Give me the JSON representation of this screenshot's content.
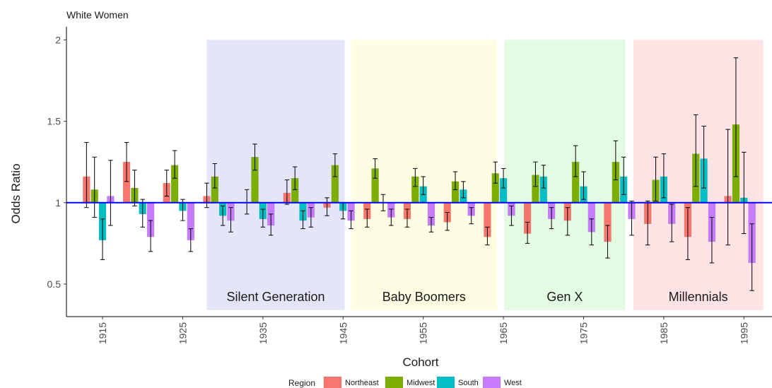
{
  "chart_data": {
    "type": "bar",
    "title": "White Women",
    "xlabel": "Cohort",
    "ylabel": "Odds Ratio",
    "ylim": [
      0.3,
      2.08
    ],
    "xlim": [
      1910.5,
      1998.5
    ],
    "reference_line": 1,
    "y_ticks": [
      {
        "value": 0.5,
        "label": "0.5"
      },
      {
        "value": 1,
        "label": "1"
      },
      {
        "value": 1.5,
        "label": "1.5"
      },
      {
        "value": 2,
        "label": "2"
      }
    ],
    "x_ticks": [
      {
        "value": 1915,
        "label": "1915"
      },
      {
        "value": 1925,
        "label": "1925"
      },
      {
        "value": 1935,
        "label": "1935"
      },
      {
        "value": 1945,
        "label": "1945"
      },
      {
        "value": 1955,
        "label": "1955"
      },
      {
        "value": 1965,
        "label": "1965"
      },
      {
        "value": 1975,
        "label": "1975"
      },
      {
        "value": 1985,
        "label": "1985"
      },
      {
        "value": 1995,
        "label": "1995"
      }
    ],
    "eras": [
      {
        "label": "Silent Generation",
        "start": 1928,
        "end": 1945.2,
        "color": "#e5e5fa"
      },
      {
        "label": "Baby Boomers",
        "start": 1946,
        "end": 1964.2,
        "color": "#fdfde3"
      },
      {
        "label": "Gen X",
        "start": 1965.1,
        "end": 1980.2,
        "color": "#e3fbe3"
      },
      {
        "label": "Millennials",
        "start": 1981.2,
        "end": 1997.4,
        "color": "#fde3e3"
      }
    ],
    "legend": {
      "title": "Region",
      "position": "bottom"
    },
    "series": [
      {
        "name": "Northeast",
        "color": "#F8766D",
        "points": [
          {
            "x": 1913,
            "y": 1.16,
            "lo": 0.97,
            "hi": 1.37
          },
          {
            "x": 1918,
            "y": 1.25,
            "lo": 1.13,
            "hi": 1.37
          },
          {
            "x": 1923,
            "y": 1.12,
            "lo": 1.04,
            "hi": 1.2
          },
          {
            "x": 1928,
            "y": 1.04,
            "lo": 0.97,
            "hi": 1.12
          },
          {
            "x": 1933,
            "y": 1.0,
            "lo": 0.93,
            "hi": 1.08
          },
          {
            "x": 1938,
            "y": 1.06,
            "lo": 0.99,
            "hi": 1.14
          },
          {
            "x": 1943,
            "y": 0.97,
            "lo": 0.92,
            "hi": 1.03
          },
          {
            "x": 1948,
            "y": 0.9,
            "lo": 0.85,
            "hi": 0.96
          },
          {
            "x": 1953,
            "y": 0.9,
            "lo": 0.85,
            "hi": 0.96
          },
          {
            "x": 1958,
            "y": 0.88,
            "lo": 0.83,
            "hi": 0.94
          },
          {
            "x": 1963,
            "y": 0.79,
            "lo": 0.74,
            "hi": 0.85
          },
          {
            "x": 1968,
            "y": 0.81,
            "lo": 0.75,
            "hi": 0.88
          },
          {
            "x": 1973,
            "y": 0.89,
            "lo": 0.8,
            "hi": 0.97
          },
          {
            "x": 1978,
            "y": 0.76,
            "lo": 0.66,
            "hi": 0.86
          },
          {
            "x": 1983,
            "y": 0.87,
            "lo": 0.74,
            "hi": 1.01
          },
          {
            "x": 1988,
            "y": 0.79,
            "lo": 0.65,
            "hi": 0.97
          },
          {
            "x": 1993,
            "y": 1.04,
            "lo": 0.74,
            "hi": 1.45
          }
        ]
      },
      {
        "name": "Midwest",
        "color": "#7CAE00",
        "points": [
          {
            "x": 1914,
            "y": 1.08,
            "lo": 0.91,
            "hi": 1.28
          },
          {
            "x": 1919,
            "y": 1.09,
            "lo": 0.98,
            "hi": 1.2
          },
          {
            "x": 1924,
            "y": 1.23,
            "lo": 1.15,
            "hi": 1.32
          },
          {
            "x": 1929,
            "y": 1.16,
            "lo": 1.09,
            "hi": 1.24
          },
          {
            "x": 1934,
            "y": 1.28,
            "lo": 1.2,
            "hi": 1.36
          },
          {
            "x": 1939,
            "y": 1.15,
            "lo": 1.08,
            "hi": 1.22
          },
          {
            "x": 1944,
            "y": 1.23,
            "lo": 1.16,
            "hi": 1.3
          },
          {
            "x": 1949,
            "y": 1.21,
            "lo": 1.15,
            "hi": 1.27
          },
          {
            "x": 1954,
            "y": 1.16,
            "lo": 1.1,
            "hi": 1.21
          },
          {
            "x": 1959,
            "y": 1.13,
            "lo": 1.08,
            "hi": 1.19
          },
          {
            "x": 1964,
            "y": 1.18,
            "lo": 1.12,
            "hi": 1.25
          },
          {
            "x": 1969,
            "y": 1.17,
            "lo": 1.1,
            "hi": 1.25
          },
          {
            "x": 1974,
            "y": 1.25,
            "lo": 1.16,
            "hi": 1.35
          },
          {
            "x": 1979,
            "y": 1.25,
            "lo": 1.14,
            "hi": 1.38
          },
          {
            "x": 1984,
            "y": 1.14,
            "lo": 1.01,
            "hi": 1.28
          },
          {
            "x": 1989,
            "y": 1.3,
            "lo": 1.1,
            "hi": 1.54
          },
          {
            "x": 1994,
            "y": 1.48,
            "lo": 1.16,
            "hi": 1.89
          }
        ]
      },
      {
        "name": "South",
        "color": "#00BFC4",
        "points": [
          {
            "x": 1915,
            "y": 0.77,
            "lo": 0.65,
            "hi": 0.9
          },
          {
            "x": 1920,
            "y": 0.93,
            "lo": 0.85,
            "hi": 1.02
          },
          {
            "x": 1925,
            "y": 0.95,
            "lo": 0.89,
            "hi": 1.02
          },
          {
            "x": 1930,
            "y": 0.92,
            "lo": 0.86,
            "hi": 0.98
          },
          {
            "x": 1935,
            "y": 0.9,
            "lo": 0.85,
            "hi": 0.96
          },
          {
            "x": 1940,
            "y": 0.89,
            "lo": 0.84,
            "hi": 0.95
          },
          {
            "x": 1945,
            "y": 0.95,
            "lo": 0.9,
            "hi": 1.0
          },
          {
            "x": 1950,
            "y": 1.0,
            "lo": 0.95,
            "hi": 1.05
          },
          {
            "x": 1955,
            "y": 1.1,
            "lo": 1.05,
            "hi": 1.16
          },
          {
            "x": 1960,
            "y": 1.08,
            "lo": 1.03,
            "hi": 1.13
          },
          {
            "x": 1965,
            "y": 1.15,
            "lo": 1.09,
            "hi": 1.21
          },
          {
            "x": 1970,
            "y": 1.16,
            "lo": 1.09,
            "hi": 1.23
          },
          {
            "x": 1975,
            "y": 1.1,
            "lo": 1.02,
            "hi": 1.19
          },
          {
            "x": 1980,
            "y": 1.16,
            "lo": 1.05,
            "hi": 1.28
          },
          {
            "x": 1985,
            "y": 1.16,
            "lo": 1.03,
            "hi": 1.3
          },
          {
            "x": 1990,
            "y": 1.27,
            "lo": 1.09,
            "hi": 1.47
          },
          {
            "x": 1995,
            "y": 1.03,
            "lo": 0.81,
            "hi": 1.31
          }
        ]
      },
      {
        "name": "West",
        "color": "#C77CFF",
        "points": [
          {
            "x": 1916,
            "y": 1.04,
            "lo": 0.86,
            "hi": 1.26
          },
          {
            "x": 1921,
            "y": 0.79,
            "lo": 0.7,
            "hi": 0.89
          },
          {
            "x": 1926,
            "y": 0.77,
            "lo": 0.7,
            "hi": 0.84
          },
          {
            "x": 1931,
            "y": 0.89,
            "lo": 0.82,
            "hi": 0.97
          },
          {
            "x": 1936,
            "y": 0.86,
            "lo": 0.8,
            "hi": 0.93
          },
          {
            "x": 1941,
            "y": 0.91,
            "lo": 0.85,
            "hi": 0.97
          },
          {
            "x": 1946,
            "y": 0.89,
            "lo": 0.84,
            "hi": 0.95
          },
          {
            "x": 1951,
            "y": 0.91,
            "lo": 0.86,
            "hi": 0.96
          },
          {
            "x": 1956,
            "y": 0.86,
            "lo": 0.82,
            "hi": 0.91
          },
          {
            "x": 1961,
            "y": 0.92,
            "lo": 0.87,
            "hi": 0.97
          },
          {
            "x": 1966,
            "y": 0.92,
            "lo": 0.86,
            "hi": 0.98
          },
          {
            "x": 1971,
            "y": 0.9,
            "lo": 0.84,
            "hi": 0.97
          },
          {
            "x": 1976,
            "y": 0.82,
            "lo": 0.74,
            "hi": 0.9
          },
          {
            "x": 1981,
            "y": 0.9,
            "lo": 0.8,
            "hi": 1.01
          },
          {
            "x": 1986,
            "y": 0.87,
            "lo": 0.76,
            "hi": 0.99
          },
          {
            "x": 1991,
            "y": 0.76,
            "lo": 0.63,
            "hi": 0.91
          },
          {
            "x": 1996,
            "y": 0.63,
            "lo": 0.46,
            "hi": 0.87
          }
        ]
      }
    ]
  }
}
